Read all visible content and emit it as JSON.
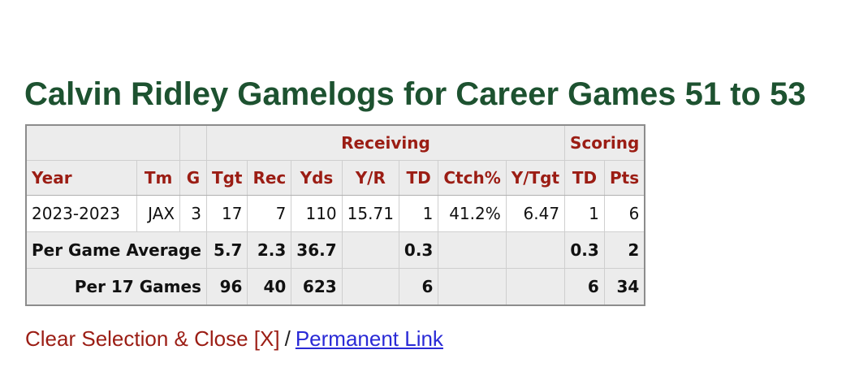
{
  "title": "Calvin Ridley Gamelogs for Career Games 51 to 53",
  "groups": {
    "receiving": "Receiving",
    "scoring": "Scoring"
  },
  "columns": {
    "year": "Year",
    "tm": "Tm",
    "g": "G",
    "tgt": "Tgt",
    "rec": "Rec",
    "yds": "Yds",
    "yr": "Y/R",
    "td": "TD",
    "ctch": "Ctch%",
    "ytgt": "Y/Tgt",
    "std": "TD",
    "pts": "Pts"
  },
  "row": {
    "year": "2023-2023",
    "tm": "JAX",
    "g": "3",
    "tgt": "17",
    "rec": "7",
    "yds": "110",
    "yr": "15.71",
    "td": "1",
    "ctch": "41.2%",
    "ytgt": "6.47",
    "std": "1",
    "pts": "6"
  },
  "per_game": {
    "label": "Per Game Average",
    "tgt": "5.7",
    "rec": "2.3",
    "yds": "36.7",
    "td": "0.3",
    "std": "0.3",
    "pts": "2"
  },
  "per_17": {
    "label": "Per 17 Games",
    "tgt": "96",
    "rec": "40",
    "yds": "623",
    "td": "6",
    "std": "6",
    "pts": "34"
  },
  "links": {
    "clear": "Clear Selection & Close [X]",
    "separator": "/",
    "permanent": "Permanent Link"
  }
}
